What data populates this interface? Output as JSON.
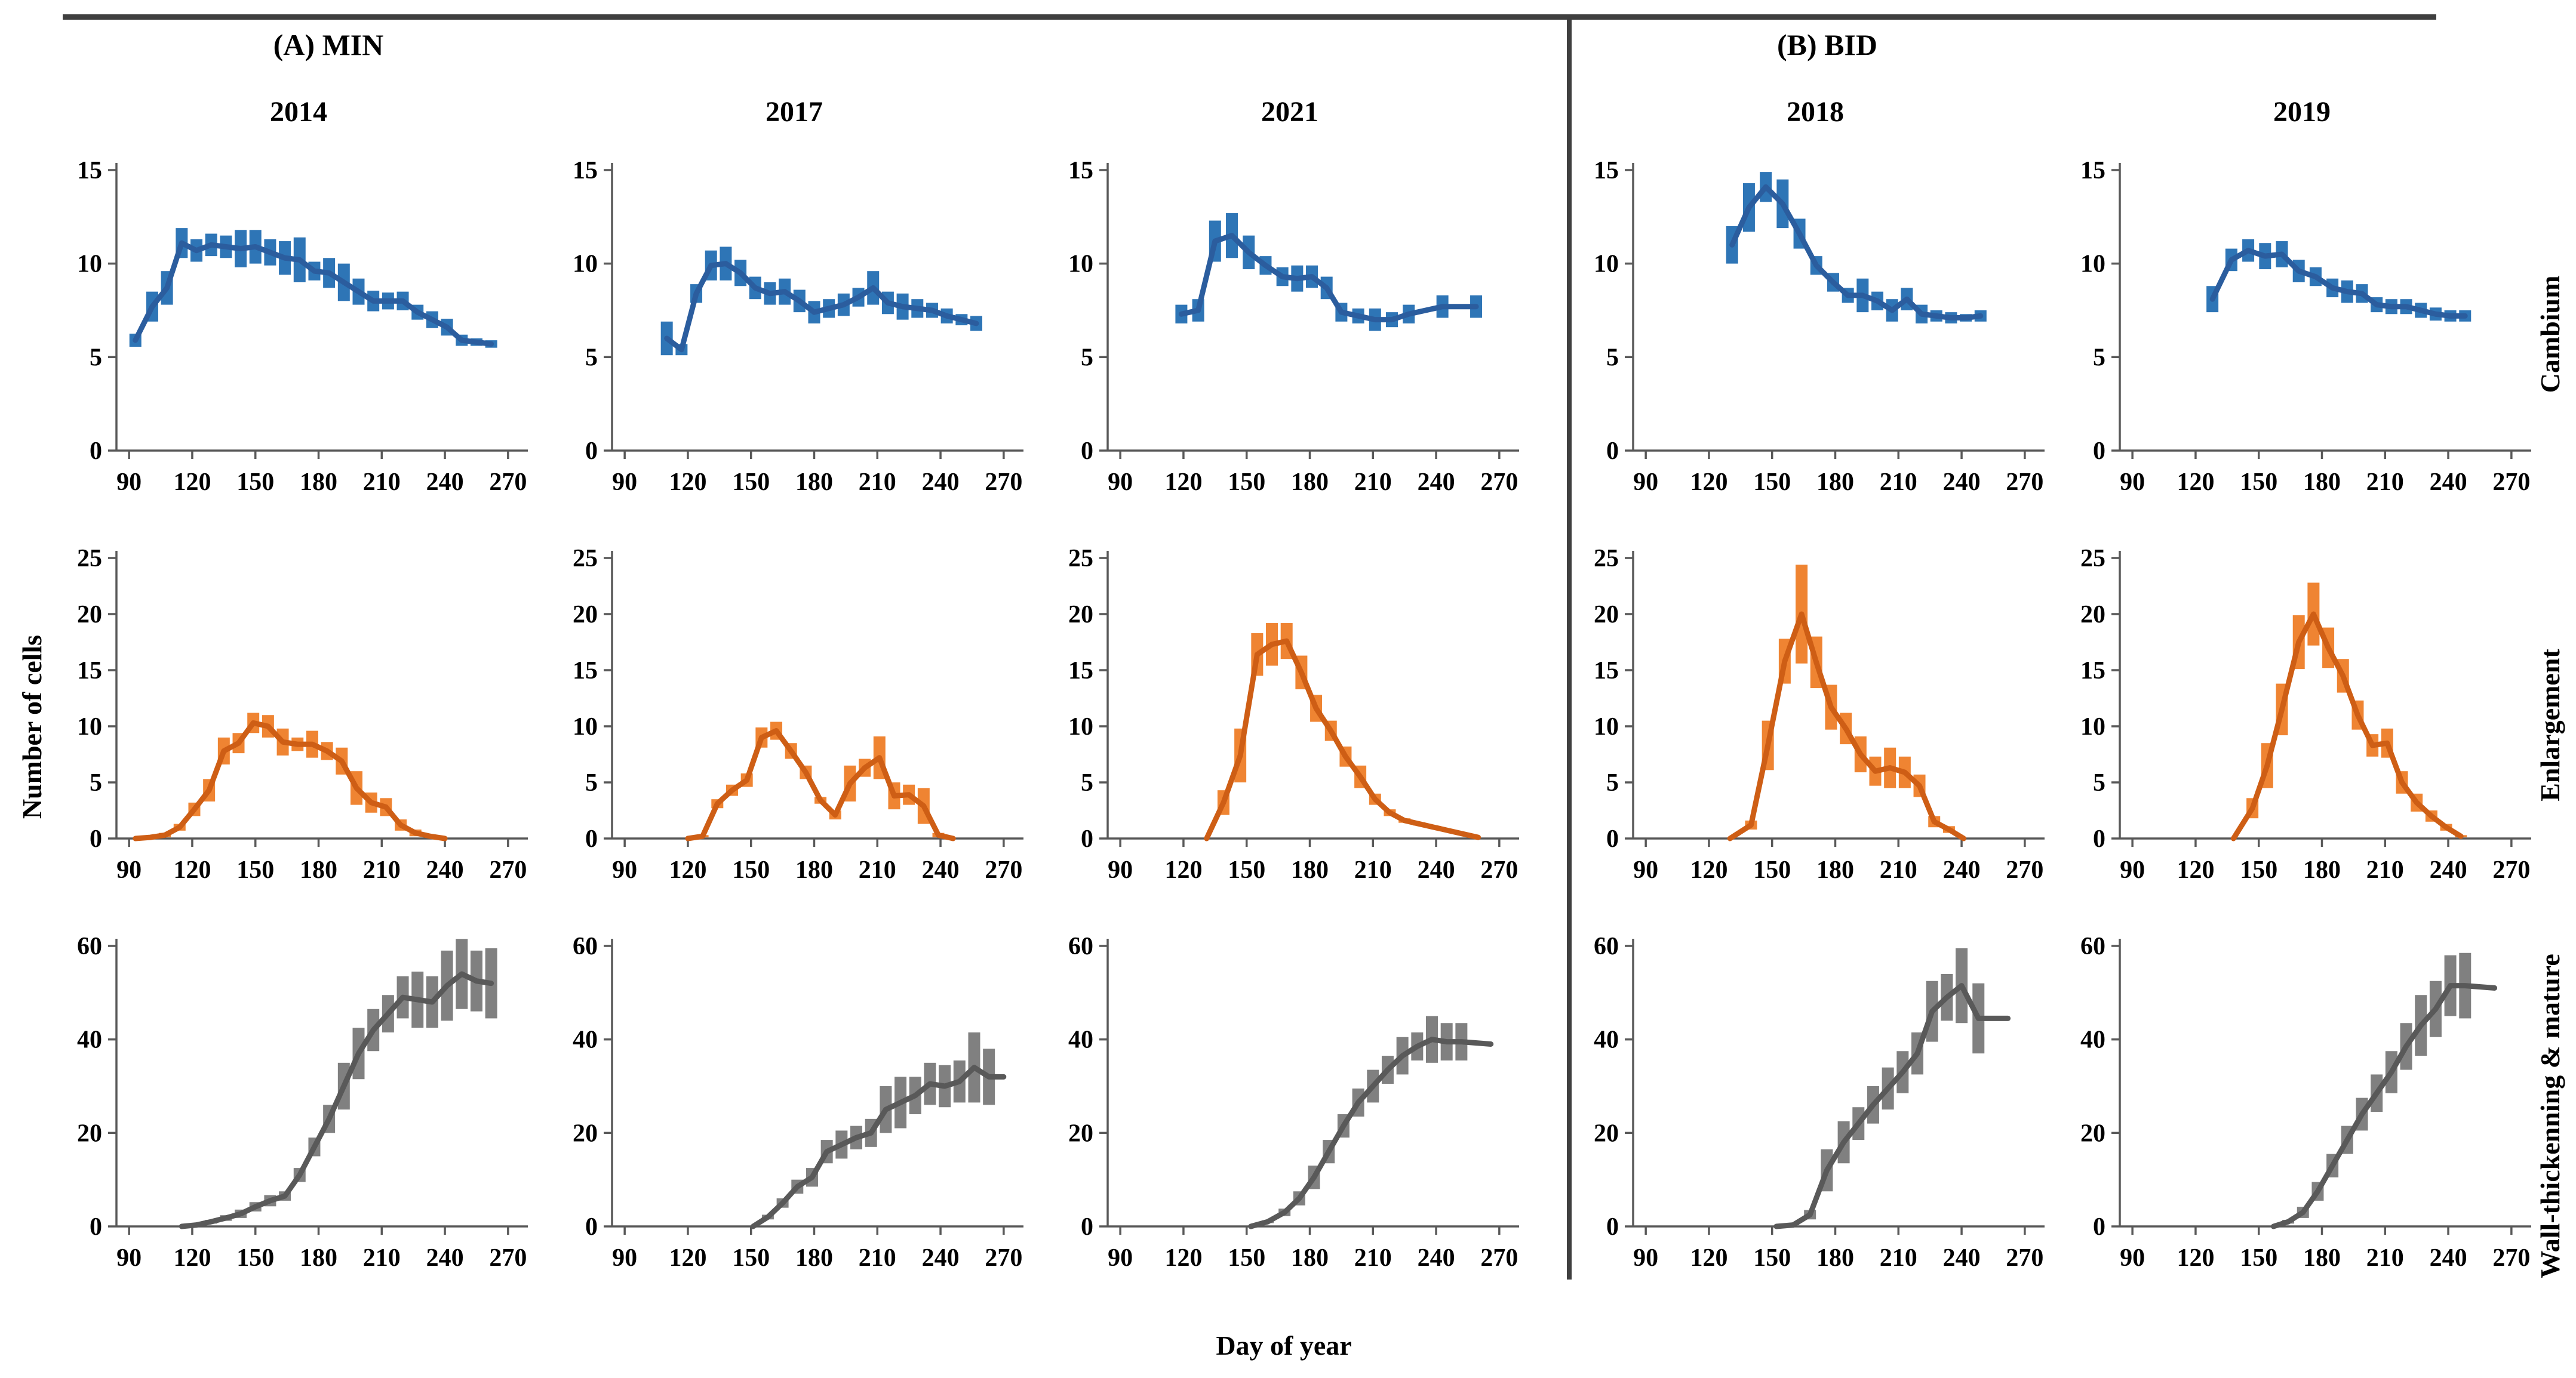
{
  "figure": {
    "group_a_label": "(A) MIN",
    "group_b_label": "(B) BID",
    "x_axis_label": "Day of year",
    "y_axis_label": "Number of cells",
    "row_labels": [
      "Cambium",
      "Enlargement",
      "Wall-thickenning & mature"
    ],
    "column_years": [
      "2014",
      "2017",
      "2021",
      "2018",
      "2019"
    ]
  },
  "style": {
    "blue_bar": "#2e75b6",
    "blue_line": "#2b5d9e",
    "orange_bar": "#ef8432",
    "orange_line": "#ce5e15",
    "gray_bar": "#808080",
    "gray_line": "#595959",
    "axis_color": "#595959",
    "rule_color": "#3f3f3f"
  },
  "chart_data": [
    {
      "type": "line",
      "row": 0,
      "col": 0,
      "row_label": "Cambium",
      "year": "2014",
      "color": "blue",
      "xlim": [
        84,
        276
      ],
      "xticks": [
        90,
        120,
        150,
        180,
        210,
        240,
        270
      ],
      "ylim": [
        0,
        15
      ],
      "yticks": [
        0,
        5,
        10,
        15
      ],
      "x": [
        93,
        101,
        108,
        115,
        122,
        129,
        136,
        143,
        150,
        157,
        164,
        171,
        178,
        185,
        192,
        199,
        206,
        213,
        220,
        227,
        234,
        241,
        248,
        255,
        262
      ],
      "y": [
        5.9,
        7.7,
        8.7,
        11.1,
        10.7,
        11.0,
        10.9,
        10.8,
        10.9,
        10.6,
        10.3,
        10.2,
        9.6,
        9.5,
        9.0,
        8.5,
        8.0,
        8.0,
        8.0,
        7.4,
        7.0,
        6.6,
        5.9,
        5.8,
        5.7
      ],
      "err": [
        0.35,
        0.8,
        0.9,
        0.8,
        0.6,
        0.6,
        0.6,
        1.0,
        0.9,
        0.7,
        0.9,
        1.2,
        0.5,
        0.8,
        1.0,
        0.7,
        0.55,
        0.45,
        0.5,
        0.4,
        0.45,
        0.45,
        0.3,
        0.2,
        0.2
      ]
    },
    {
      "type": "line",
      "row": 0,
      "col": 1,
      "row_label": "Cambium",
      "year": "2017",
      "color": "blue",
      "xlim": [
        84,
        276
      ],
      "xticks": [
        90,
        120,
        150,
        180,
        210,
        240,
        270
      ],
      "ylim": [
        0,
        15
      ],
      "yticks": [
        0,
        5,
        10,
        15
      ],
      "x": [
        110,
        117,
        124,
        131,
        138,
        145,
        152,
        159,
        166,
        173,
        180,
        187,
        194,
        201,
        208,
        215,
        222,
        229,
        236,
        243,
        250,
        257
      ],
      "y": [
        6.0,
        5.4,
        8.4,
        9.9,
        10.0,
        9.5,
        8.7,
        8.4,
        8.5,
        8.0,
        7.4,
        7.6,
        7.8,
        8.2,
        8.7,
        7.9,
        7.7,
        7.6,
        7.5,
        7.2,
        7.0,
        6.8
      ],
      "err": [
        0.9,
        0.3,
        0.5,
        0.8,
        0.9,
        0.7,
        0.6,
        0.6,
        0.7,
        0.6,
        0.6,
        0.5,
        0.6,
        0.5,
        0.9,
        0.6,
        0.7,
        0.5,
        0.4,
        0.4,
        0.3,
        0.4
      ]
    },
    {
      "type": "line",
      "row": 0,
      "col": 2,
      "row_label": "Cambium",
      "year": "2021",
      "color": "blue",
      "xlim": [
        84,
        276
      ],
      "xticks": [
        90,
        120,
        150,
        180,
        210,
        240,
        270
      ],
      "ylim": [
        0,
        15
      ],
      "yticks": [
        0,
        5,
        10,
        15
      ],
      "x": [
        119,
        127,
        135,
        143,
        151,
        159,
        167,
        174,
        181,
        188,
        195,
        203,
        211,
        219,
        227,
        243,
        259
      ],
      "y": [
        7.3,
        7.5,
        11.2,
        11.5,
        10.6,
        9.9,
        9.3,
        9.2,
        9.3,
        8.7,
        7.4,
        7.2,
        7.0,
        7.0,
        7.3,
        7.7,
        7.7
      ],
      "err": [
        0.5,
        0.6,
        1.1,
        1.2,
        0.9,
        0.5,
        0.5,
        0.7,
        0.6,
        0.6,
        0.5,
        0.4,
        0.6,
        0.4,
        0.5,
        0.6,
        0.6
      ]
    },
    {
      "type": "line",
      "row": 0,
      "col": 3,
      "row_label": "Cambium",
      "year": "2018",
      "color": "blue",
      "xlim": [
        84,
        276
      ],
      "xticks": [
        90,
        120,
        150,
        180,
        210,
        240,
        270
      ],
      "ylim": [
        0,
        15
      ],
      "yticks": [
        0,
        5,
        10,
        15
      ],
      "x": [
        131,
        139,
        147,
        155,
        163,
        171,
        179,
        186,
        193,
        200,
        207,
        214,
        221,
        228,
        235,
        242,
        249
      ],
      "y": [
        11.0,
        13.0,
        14.1,
        13.2,
        11.6,
        9.9,
        9.0,
        8.3,
        8.3,
        8.0,
        7.5,
        8.1,
        7.3,
        7.2,
        7.1,
        7.1,
        7.2
      ],
      "err": [
        1.0,
        1.3,
        0.8,
        1.3,
        0.8,
        0.5,
        0.5,
        0.4,
        0.9,
        0.5,
        0.6,
        0.6,
        0.5,
        0.3,
        0.3,
        0.2,
        0.3
      ]
    },
    {
      "type": "line",
      "row": 0,
      "col": 4,
      "row_label": "Cambium",
      "year": "2019",
      "color": "blue",
      "xlim": [
        84,
        276
      ],
      "xticks": [
        90,
        120,
        150,
        180,
        210,
        240,
        270
      ],
      "ylim": [
        0,
        15
      ],
      "yticks": [
        0,
        5,
        10,
        15
      ],
      "x": [
        128,
        137,
        145,
        153,
        161,
        169,
        177,
        185,
        192,
        199,
        206,
        213,
        220,
        227,
        234,
        241,
        248
      ],
      "y": [
        8.1,
        10.2,
        10.7,
        10.4,
        10.5,
        9.6,
        9.3,
        8.7,
        8.5,
        8.4,
        7.8,
        7.7,
        7.7,
        7.5,
        7.3,
        7.2,
        7.2
      ],
      "err": [
        0.7,
        0.6,
        0.6,
        0.7,
        0.7,
        0.6,
        0.5,
        0.5,
        0.6,
        0.5,
        0.4,
        0.4,
        0.4,
        0.4,
        0.35,
        0.3,
        0.3
      ]
    },
    {
      "type": "line",
      "row": 1,
      "col": 0,
      "row_label": "Enlargement",
      "year": "2014",
      "color": "orange",
      "xlim": [
        84,
        276
      ],
      "xticks": [
        90,
        120,
        150,
        180,
        210,
        240,
        270
      ],
      "ylim": [
        0,
        25
      ],
      "yticks": [
        0,
        5,
        10,
        15,
        20,
        25
      ],
      "x": [
        93,
        100,
        107,
        114,
        121,
        128,
        135,
        142,
        149,
        156,
        163,
        170,
        177,
        184,
        191,
        198,
        205,
        212,
        219,
        226,
        233,
        240
      ],
      "y": [
        0,
        0.1,
        0.3,
        1.0,
        2.6,
        4.3,
        7.8,
        8.5,
        10.3,
        10.0,
        8.6,
        8.4,
        8.4,
        7.8,
        6.9,
        4.5,
        3.2,
        2.8,
        1.2,
        0.5,
        0.2,
        0
      ],
      "err": [
        0,
        0.1,
        0.2,
        0.3,
        0.6,
        1.0,
        1.2,
        0.9,
        0.9,
        1.0,
        1.2,
        0.6,
        1.2,
        0.8,
        1.2,
        1.5,
        0.9,
        0.8,
        0.5,
        0.3,
        0.1,
        0
      ]
    },
    {
      "type": "line",
      "row": 1,
      "col": 1,
      "row_label": "Enlargement",
      "year": "2017",
      "color": "orange",
      "xlim": [
        84,
        276
      ],
      "xticks": [
        90,
        120,
        150,
        180,
        210,
        240,
        270
      ],
      "ylim": [
        0,
        25
      ],
      "yticks": [
        0,
        5,
        10,
        15,
        20,
        25
      ],
      "x": [
        120,
        127,
        134,
        141,
        148,
        155,
        162,
        169,
        176,
        183,
        190,
        197,
        204,
        211,
        218,
        225,
        232,
        239,
        246
      ],
      "y": [
        0,
        0.2,
        3.1,
        4.3,
        5.2,
        9.0,
        9.6,
        7.8,
        5.9,
        3.4,
        2.1,
        4.9,
        6.3,
        7.2,
        3.8,
        3.9,
        2.9,
        0.3,
        0
      ],
      "err": [
        0,
        0.1,
        0.4,
        0.5,
        0.6,
        0.9,
        0.8,
        0.7,
        0.6,
        0.3,
        0.4,
        1.6,
        0.8,
        1.9,
        1.2,
        0.9,
        1.6,
        0.2,
        0
      ]
    },
    {
      "type": "line",
      "row": 1,
      "col": 2,
      "row_label": "Enlargement",
      "year": "2021",
      "color": "orange",
      "xlim": [
        84,
        276
      ],
      "xticks": [
        90,
        120,
        150,
        180,
        210,
        240,
        270
      ],
      "ylim": [
        0,
        25
      ],
      "yticks": [
        0,
        5,
        10,
        15,
        20,
        25
      ],
      "x": [
        131,
        139,
        147,
        155,
        162,
        169,
        176,
        183,
        190,
        197,
        204,
        211,
        218,
        225,
        232,
        239,
        246,
        253,
        260
      ],
      "y": [
        0,
        3.2,
        7.4,
        16.4,
        17.3,
        17.6,
        14.8,
        11.6,
        9.6,
        7.3,
        5.5,
        3.5,
        2.3,
        1.6,
        1.3,
        1.0,
        0.7,
        0.4,
        0.1
      ],
      "err": [
        0,
        1.1,
        2.4,
        1.9,
        1.9,
        1.6,
        1.5,
        1.2,
        0.9,
        0.9,
        1.0,
        0.5,
        0.3,
        0.2,
        0.15,
        0.1,
        0.1,
        0.05,
        0
      ]
    },
    {
      "type": "line",
      "row": 1,
      "col": 3,
      "row_label": "Enlargement",
      "year": "2018",
      "color": "orange",
      "xlim": [
        84,
        276
      ],
      "xticks": [
        90,
        120,
        150,
        180,
        210,
        240,
        270
      ],
      "ylim": [
        0,
        25
      ],
      "yticks": [
        0,
        5,
        10,
        15,
        20,
        25
      ],
      "x": [
        130,
        140,
        148,
        156,
        164,
        171,
        178,
        185,
        192,
        199,
        206,
        213,
        220,
        227,
        234,
        241
      ],
      "y": [
        0,
        1.2,
        8.3,
        15.8,
        20.0,
        15.7,
        11.7,
        9.8,
        7.5,
        6.0,
        6.3,
        5.9,
        4.7,
        1.5,
        0.8,
        0
      ],
      "err": [
        0,
        0.4,
        2.2,
        2.0,
        4.4,
        2.3,
        2.0,
        1.4,
        1.6,
        1.3,
        1.8,
        1.4,
        1.0,
        0.5,
        0.3,
        0
      ]
    },
    {
      "type": "line",
      "row": 1,
      "col": 4,
      "row_label": "Enlargement",
      "year": "2019",
      "color": "orange",
      "xlim": [
        84,
        276
      ],
      "xticks": [
        90,
        120,
        150,
        180,
        210,
        240,
        270
      ],
      "ylim": [
        0,
        25
      ],
      "yticks": [
        0,
        5,
        10,
        15,
        20,
        25
      ],
      "x": [
        138,
        147,
        154,
        161,
        169,
        176,
        183,
        190,
        197,
        204,
        211,
        218,
        225,
        232,
        239,
        246
      ],
      "y": [
        0,
        2.7,
        6.5,
        11.5,
        17.5,
        20.0,
        17.0,
        14.5,
        11.0,
        8.3,
        8.5,
        5.0,
        3.2,
        2.0,
        1.0,
        0.2
      ],
      "err": [
        0,
        0.9,
        2.0,
        2.3,
        2.4,
        2.8,
        1.8,
        1.5,
        1.3,
        1.0,
        1.3,
        1.0,
        0.8,
        0.5,
        0.3,
        0.1
      ]
    },
    {
      "type": "line",
      "row": 2,
      "col": 0,
      "row_label": "Wall-thickenning & mature",
      "year": "2014",
      "color": "gray",
      "xlim": [
        84,
        276
      ],
      "xticks": [
        90,
        120,
        150,
        180,
        210,
        240,
        270
      ],
      "ylim": [
        0,
        60
      ],
      "yticks": [
        0,
        20,
        40,
        60
      ],
      "x": [
        115,
        122,
        129,
        136,
        143,
        150,
        157,
        164,
        171,
        178,
        185,
        192,
        199,
        206,
        213,
        220,
        227,
        234,
        241,
        248,
        255,
        262
      ],
      "y": [
        0,
        0.3,
        1.0,
        1.8,
        2.7,
        4.2,
        5.5,
        6.5,
        11.0,
        17.0,
        23.0,
        30.0,
        37.0,
        42.0,
        45.5,
        49.0,
        48.5,
        48.0,
        51.5,
        54.0,
        52.5,
        52.0
      ],
      "err": [
        0,
        0.2,
        0.4,
        0.6,
        0.9,
        1.0,
        1.2,
        1.0,
        1.5,
        2.0,
        3.0,
        5.0,
        5.5,
        4.5,
        4.0,
        4.5,
        6.0,
        5.5,
        7.5,
        7.5,
        6.5,
        7.5
      ]
    },
    {
      "type": "line",
      "row": 2,
      "col": 1,
      "row_label": "Wall-thickenning & mature",
      "year": "2017",
      "color": "gray",
      "xlim": [
        84,
        276
      ],
      "xticks": [
        90,
        120,
        150,
        180,
        210,
        240,
        270
      ],
      "ylim": [
        0,
        60
      ],
      "yticks": [
        0,
        20,
        40,
        60
      ],
      "x": [
        151,
        158,
        165,
        172,
        179,
        186,
        193,
        200,
        207,
        214,
        221,
        228,
        235,
        242,
        249,
        256,
        263,
        270
      ],
      "y": [
        0,
        2.0,
        5.0,
        8.5,
        10.5,
        16.0,
        17.5,
        19.0,
        20.0,
        25.0,
        26.5,
        28.0,
        30.5,
        30.0,
        31.0,
        34.0,
        32.0,
        32.0
      ],
      "err": [
        0,
        0.5,
        1.0,
        1.5,
        2.0,
        2.5,
        3.0,
        2.5,
        3.0,
        5.0,
        5.5,
        4.0,
        4.5,
        4.5,
        4.5,
        7.5,
        6.0,
        0
      ]
    },
    {
      "type": "line",
      "row": 2,
      "col": 2,
      "row_label": "Wall-thickenning & mature",
      "year": "2021",
      "color": "gray",
      "xlim": [
        84,
        276
      ],
      "xticks": [
        90,
        120,
        150,
        180,
        210,
        240,
        270
      ],
      "ylim": [
        0,
        60
      ],
      "yticks": [
        0,
        20,
        40,
        60
      ],
      "x": [
        152,
        160,
        168,
        175,
        182,
        189,
        196,
        203,
        210,
        217,
        224,
        231,
        238,
        245,
        252,
        266
      ],
      "y": [
        0,
        1.0,
        3.0,
        6.0,
        10.5,
        16.0,
        21.5,
        26.5,
        30.0,
        33.5,
        36.5,
        38.5,
        40.0,
        39.5,
        39.5,
        39.0
      ],
      "err": [
        0,
        0.3,
        0.8,
        1.5,
        2.5,
        2.5,
        2.5,
        3.0,
        3.5,
        3.0,
        4.0,
        3.0,
        5.0,
        4.0,
        4.0,
        0
      ]
    },
    {
      "type": "line",
      "row": 2,
      "col": 3,
      "row_label": "Wall-thickenning & mature",
      "year": "2018",
      "color": "gray",
      "xlim": [
        84,
        276
      ],
      "xticks": [
        90,
        120,
        150,
        180,
        210,
        240,
        270
      ],
      "ylim": [
        0,
        60
      ],
      "yticks": [
        0,
        20,
        40,
        60
      ],
      "x": [
        152,
        160,
        168,
        176,
        184,
        191,
        198,
        205,
        212,
        219,
        226,
        233,
        240,
        248,
        262
      ],
      "y": [
        0,
        0.3,
        2.5,
        12.0,
        18.0,
        22.0,
        26.0,
        29.5,
        33.0,
        37.0,
        46.0,
        49.0,
        51.5,
        44.5,
        44.5
      ],
      "err": [
        0,
        0.2,
        1.0,
        4.5,
        4.5,
        3.5,
        4.0,
        4.5,
        4.5,
        4.5,
        6.5,
        5.0,
        8.0,
        7.5,
        0
      ]
    },
    {
      "type": "line",
      "row": 2,
      "col": 4,
      "row_label": "Wall-thickenning & mature",
      "year": "2019",
      "color": "gray",
      "xlim": [
        84,
        276
      ],
      "xticks": [
        90,
        120,
        150,
        180,
        210,
        240,
        270
      ],
      "ylim": [
        0,
        60
      ],
      "yticks": [
        0,
        20,
        40,
        60
      ],
      "x": [
        157,
        164,
        171,
        178,
        185,
        192,
        199,
        206,
        213,
        220,
        227,
        234,
        241,
        248,
        262
      ],
      "y": [
        0,
        1.0,
        3.0,
        7.5,
        13.0,
        18.5,
        24.0,
        28.5,
        33.0,
        38.5,
        43.0,
        46.5,
        51.5,
        51.5,
        51.0
      ],
      "err": [
        0,
        0.4,
        1.2,
        2.0,
        2.5,
        3.0,
        3.5,
        4.0,
        4.5,
        5.0,
        6.5,
        6.0,
        6.5,
        7.0,
        0
      ]
    }
  ]
}
